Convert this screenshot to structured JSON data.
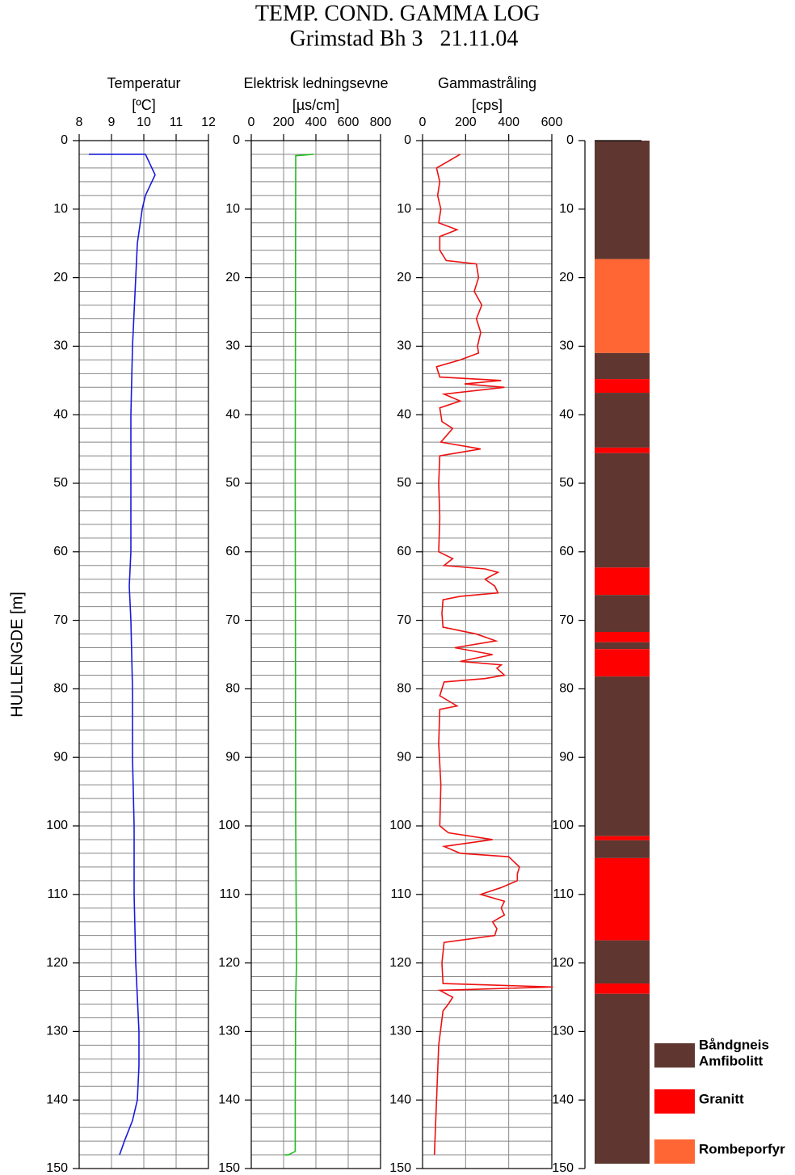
{
  "title": "TEMP. COND. GAMMA LOG",
  "subtitle": "Grimstad Bh 3   21.11.04",
  "ylabel": "HULLENGDE  [m]",
  "depth_axis": {
    "lim": [
      0,
      150
    ],
    "ticks": [
      0,
      10,
      20,
      30,
      40,
      50,
      60,
      70,
      80,
      90,
      100,
      110,
      120,
      130,
      140,
      150
    ],
    "minor": [
      0,
      2,
      4,
      6,
      8,
      10,
      12,
      14,
      16,
      18,
      20,
      22,
      24,
      26,
      28,
      30,
      32,
      34,
      36,
      38,
      40,
      42,
      44,
      46,
      48,
      50,
      52,
      54,
      56,
      58,
      60,
      62,
      64,
      66,
      68,
      70,
      72,
      74,
      76,
      78,
      80,
      82,
      84,
      86,
      88,
      90,
      92,
      94,
      96,
      98,
      100,
      102,
      104,
      106,
      108,
      110,
      112,
      114,
      116,
      118,
      120,
      122,
      124,
      126,
      128,
      130,
      132,
      134,
      136,
      138,
      140,
      142,
      144,
      146,
      148,
      150
    ]
  },
  "chart_data": [
    {
      "type": "line",
      "title": "Temperatur",
      "unit": "[ºC]",
      "color": "#1a1adb",
      "xlim": [
        8,
        12
      ],
      "xticks": [
        8,
        9,
        10,
        11,
        12
      ],
      "grid": true,
      "depth": [
        2,
        2,
        5,
        8,
        10,
        15,
        20,
        30,
        40,
        50,
        60,
        65,
        70,
        80,
        90,
        100,
        110,
        120,
        130,
        135,
        140,
        143,
        146,
        148
      ],
      "values": [
        8.3,
        10.05,
        10.35,
        10.05,
        9.95,
        9.8,
        9.75,
        9.65,
        9.6,
        9.6,
        9.6,
        9.55,
        9.6,
        9.65,
        9.65,
        9.7,
        9.7,
        9.75,
        9.85,
        9.85,
        9.8,
        9.65,
        9.4,
        9.25
      ]
    },
    {
      "type": "line",
      "title": "Elektrisk ledningsevne",
      "unit": "[µs/cm]",
      "color": "#22bb22",
      "xlim": [
        0,
        800
      ],
      "xticks": [
        0,
        200,
        400,
        600,
        800
      ],
      "grid": true,
      "depth": [
        2,
        2.2,
        3,
        50,
        100,
        120,
        125,
        140,
        147.5,
        148,
        148
      ],
      "values": [
        385,
        275,
        275,
        272,
        275,
        280,
        275,
        272,
        272,
        230,
        205
      ]
    },
    {
      "type": "line",
      "title": "Gammastråling",
      "unit": "[cps]",
      "color": "#ee1111",
      "xlim": [
        0,
        600
      ],
      "xticks": [
        0,
        200,
        400,
        600
      ],
      "grid": true,
      "depth": [
        2,
        3,
        4,
        6,
        8,
        10,
        12,
        13,
        14,
        16,
        17.5,
        18,
        20,
        22,
        24,
        26,
        28,
        30,
        31,
        32,
        33,
        34.5,
        35,
        35.5,
        36,
        37,
        38,
        39,
        41,
        42,
        44,
        45,
        46,
        50,
        55,
        60,
        61,
        62,
        62.5,
        63,
        64,
        65,
        66,
        66.5,
        67,
        69,
        71,
        72,
        73,
        74,
        75,
        76,
        76.5,
        77,
        78,
        78.5,
        79,
        81,
        82.5,
        83,
        88,
        94,
        100,
        101,
        102,
        103,
        104,
        104.5,
        106,
        107,
        108,
        109,
        110,
        111,
        112,
        113,
        114,
        115,
        116,
        117,
        120,
        123,
        123.5,
        124,
        125,
        126,
        127,
        132,
        140,
        148
      ],
      "values": [
        175,
        120,
        65,
        80,
        70,
        85,
        75,
        160,
        80,
        80,
        110,
        250,
        260,
        240,
        275,
        250,
        270,
        255,
        260,
        175,
        65,
        80,
        365,
        195,
        380,
        100,
        175,
        80,
        90,
        140,
        85,
        270,
        80,
        75,
        80,
        75,
        140,
        100,
        290,
        350,
        290,
        335,
        350,
        175,
        95,
        90,
        95,
        250,
        340,
        150,
        325,
        175,
        365,
        345,
        380,
        290,
        100,
        80,
        160,
        80,
        75,
        85,
        80,
        120,
        325,
        100,
        175,
        400,
        450,
        440,
        440,
        365,
        270,
        380,
        365,
        380,
        325,
        345,
        335,
        100,
        90,
        95,
        605,
        80,
        140,
        120,
        95,
        75,
        65,
        55
      ]
    },
    {
      "type": "column",
      "legend": [
        {
          "name": [
            "Båndgneis",
            "Amfibolitt"
          ],
          "color": "#5f3630"
        },
        {
          "name": [
            "Granitt"
          ],
          "color": "#ff0000"
        },
        {
          "name": [
            "Rombeporfyr"
          ],
          "color": "#ff6633"
        }
      ],
      "layers": [
        {
          "top": 0,
          "bottom": 17.3,
          "rock": 0
        },
        {
          "top": 17.3,
          "bottom": 31,
          "rock": 2
        },
        {
          "top": 31,
          "bottom": 34.8,
          "rock": 0
        },
        {
          "top": 34.8,
          "bottom": 36.8,
          "rock": 1
        },
        {
          "top": 36.8,
          "bottom": 44.8,
          "rock": 0
        },
        {
          "top": 44.8,
          "bottom": 45.6,
          "rock": 1
        },
        {
          "top": 45.6,
          "bottom": 62.3,
          "rock": 0
        },
        {
          "top": 62.3,
          "bottom": 66.3,
          "rock": 1
        },
        {
          "top": 66.3,
          "bottom": 71.7,
          "rock": 0
        },
        {
          "top": 71.7,
          "bottom": 73.2,
          "rock": 1
        },
        {
          "top": 73.2,
          "bottom": 74.2,
          "rock": 0
        },
        {
          "top": 74.2,
          "bottom": 78.2,
          "rock": 1
        },
        {
          "top": 78.2,
          "bottom": 101.5,
          "rock": 0
        },
        {
          "top": 101.5,
          "bottom": 102.1,
          "rock": 1
        },
        {
          "top": 102.1,
          "bottom": 104.7,
          "rock": 0
        },
        {
          "top": 104.7,
          "bottom": 116.7,
          "rock": 1
        },
        {
          "top": 116.7,
          "bottom": 123,
          "rock": 0
        },
        {
          "top": 123,
          "bottom": 124.5,
          "rock": 1
        },
        {
          "top": 124.5,
          "bottom": 149.3,
          "rock": 0
        }
      ]
    }
  ]
}
